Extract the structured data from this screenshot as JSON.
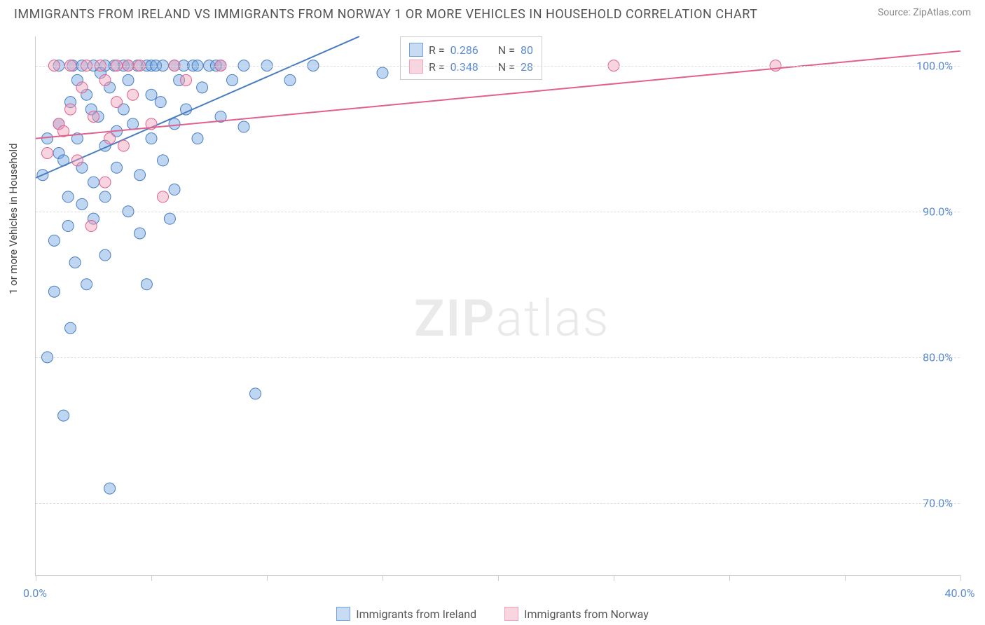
{
  "title": "IMMIGRANTS FROM IRELAND VS IMMIGRANTS FROM NORWAY 1 OR MORE VEHICLES IN HOUSEHOLD CORRELATION CHART",
  "source": "Source: ZipAtlas.com",
  "y_axis_label": "1 or more Vehicles in Household",
  "watermark": "ZIPatlas",
  "chart": {
    "type": "scatter",
    "background_color": "#ffffff",
    "grid_color": "#dddddd",
    "axis_color": "#cccccc",
    "xlim": [
      0,
      40
    ],
    "ylim": [
      65,
      102
    ],
    "x_ticks": [
      0,
      5,
      10,
      15,
      20,
      25,
      30,
      35,
      40
    ],
    "x_tick_labels": [
      "0.0%",
      "",
      "",
      "",
      "",
      "",
      "",
      "",
      "40.0%"
    ],
    "y_ticks": [
      70,
      80,
      90,
      100
    ],
    "y_tick_labels": [
      "70.0%",
      "80.0%",
      "90.0%",
      "100.0%"
    ],
    "marker_radius": 8,
    "marker_opacity": 0.45,
    "line_width": 2,
    "series": [
      {
        "name": "Immigrants from Ireland",
        "color": "#6ea3e0",
        "stroke": "#4a7dc0",
        "R": "0.286",
        "N": "80",
        "trend": {
          "x1": 0,
          "y1": 92.3,
          "x2": 14,
          "y2": 102
        },
        "points": [
          [
            0.3,
            92.5
          ],
          [
            0.5,
            95.0
          ],
          [
            0.5,
            80.0
          ],
          [
            0.8,
            84.5
          ],
          [
            0.8,
            88.0
          ],
          [
            1.0,
            96.0
          ],
          [
            1.0,
            100.0
          ],
          [
            1.0,
            94.0
          ],
          [
            1.2,
            76.0
          ],
          [
            1.2,
            93.5
          ],
          [
            1.4,
            91.0
          ],
          [
            1.4,
            89.0
          ],
          [
            1.5,
            97.5
          ],
          [
            1.5,
            82.0
          ],
          [
            1.6,
            100.0
          ],
          [
            1.7,
            86.5
          ],
          [
            1.8,
            99.0
          ],
          [
            1.8,
            95.0
          ],
          [
            2.0,
            100.0
          ],
          [
            2.0,
            93.0
          ],
          [
            2.0,
            90.5
          ],
          [
            2.2,
            98.0
          ],
          [
            2.2,
            85.0
          ],
          [
            2.4,
            97.0
          ],
          [
            2.5,
            92.0
          ],
          [
            2.5,
            100.0
          ],
          [
            2.5,
            89.5
          ],
          [
            2.7,
            96.5
          ],
          [
            2.8,
            99.5
          ],
          [
            3.0,
            100.0
          ],
          [
            3.0,
            94.5
          ],
          [
            3.0,
            91.0
          ],
          [
            3.0,
            87.0
          ],
          [
            3.2,
            98.5
          ],
          [
            3.2,
            71.0
          ],
          [
            3.4,
            100.0
          ],
          [
            3.5,
            95.5
          ],
          [
            3.5,
            93.0
          ],
          [
            3.8,
            100.0
          ],
          [
            3.8,
            97.0
          ],
          [
            4.0,
            100.0
          ],
          [
            4.0,
            90.0
          ],
          [
            4.0,
            99.0
          ],
          [
            4.2,
            96.0
          ],
          [
            4.4,
            100.0
          ],
          [
            4.5,
            92.5
          ],
          [
            4.5,
            88.5
          ],
          [
            4.8,
            100.0
          ],
          [
            4.8,
            85.0
          ],
          [
            5.0,
            100.0
          ],
          [
            5.0,
            98.0
          ],
          [
            5.0,
            95.0
          ],
          [
            5.2,
            100.0
          ],
          [
            5.4,
            97.5
          ],
          [
            5.5,
            100.0
          ],
          [
            5.5,
            93.5
          ],
          [
            5.8,
            89.5
          ],
          [
            6.0,
            100.0
          ],
          [
            6.0,
            96.0
          ],
          [
            6.0,
            91.5
          ],
          [
            6.2,
            99.0
          ],
          [
            6.4,
            100.0
          ],
          [
            6.5,
            97.0
          ],
          [
            6.8,
            100.0
          ],
          [
            7.0,
            95.0
          ],
          [
            7.0,
            100.0
          ],
          [
            7.2,
            98.5
          ],
          [
            7.5,
            100.0
          ],
          [
            7.8,
            100.0
          ],
          [
            8.0,
            96.5
          ],
          [
            8.0,
            100.0
          ],
          [
            8.5,
            99.0
          ],
          [
            9.0,
            100.0
          ],
          [
            9.0,
            95.8
          ],
          [
            9.5,
            77.5
          ],
          [
            10.0,
            100.0
          ],
          [
            11.0,
            99.0
          ],
          [
            12.0,
            100.0
          ],
          [
            15.0,
            99.5
          ],
          [
            18.0,
            100.0
          ]
        ]
      },
      {
        "name": "Immigrants from Norway",
        "color": "#f0a0b8",
        "stroke": "#e06090",
        "R": "0.348",
        "N": "28",
        "trend": {
          "x1": 0,
          "y1": 95.0,
          "x2": 40,
          "y2": 101
        },
        "points": [
          [
            0.5,
            94.0
          ],
          [
            0.8,
            100.0
          ],
          [
            1.0,
            96.0
          ],
          [
            1.2,
            95.5
          ],
          [
            1.5,
            100.0
          ],
          [
            1.5,
            97.0
          ],
          [
            1.8,
            93.5
          ],
          [
            2.0,
            98.5
          ],
          [
            2.2,
            100.0
          ],
          [
            2.4,
            89.0
          ],
          [
            2.5,
            96.5
          ],
          [
            2.8,
            100.0
          ],
          [
            3.0,
            92.0
          ],
          [
            3.0,
            99.0
          ],
          [
            3.2,
            95.0
          ],
          [
            3.5,
            100.0
          ],
          [
            3.5,
            97.5
          ],
          [
            3.8,
            94.5
          ],
          [
            4.0,
            100.0
          ],
          [
            4.2,
            98.0
          ],
          [
            4.5,
            100.0
          ],
          [
            5.0,
            96.0
          ],
          [
            5.5,
            91.0
          ],
          [
            6.0,
            100.0
          ],
          [
            6.5,
            99.0
          ],
          [
            8.0,
            100.0
          ],
          [
            25.0,
            100.0
          ],
          [
            32.0,
            100.0
          ]
        ]
      }
    ]
  },
  "legend_box": {
    "rows": [
      {
        "swatch_fill": "#c8dbf2",
        "swatch_stroke": "#6ea3e0",
        "r_label": "R =",
        "r_val": "0.286",
        "n_label": "N =",
        "n_val": "80"
      },
      {
        "swatch_fill": "#f7d6e0",
        "swatch_stroke": "#f0a0b8",
        "r_label": "R =",
        "r_val": "0.348",
        "n_label": "N =",
        "n_val": "28"
      }
    ]
  },
  "bottom_legend": [
    {
      "swatch_fill": "#c8dbf2",
      "swatch_stroke": "#6ea3e0",
      "label": "Immigrants from Ireland"
    },
    {
      "swatch_fill": "#f7d6e0",
      "swatch_stroke": "#f0a0b8",
      "label": "Immigrants from Norway"
    }
  ]
}
